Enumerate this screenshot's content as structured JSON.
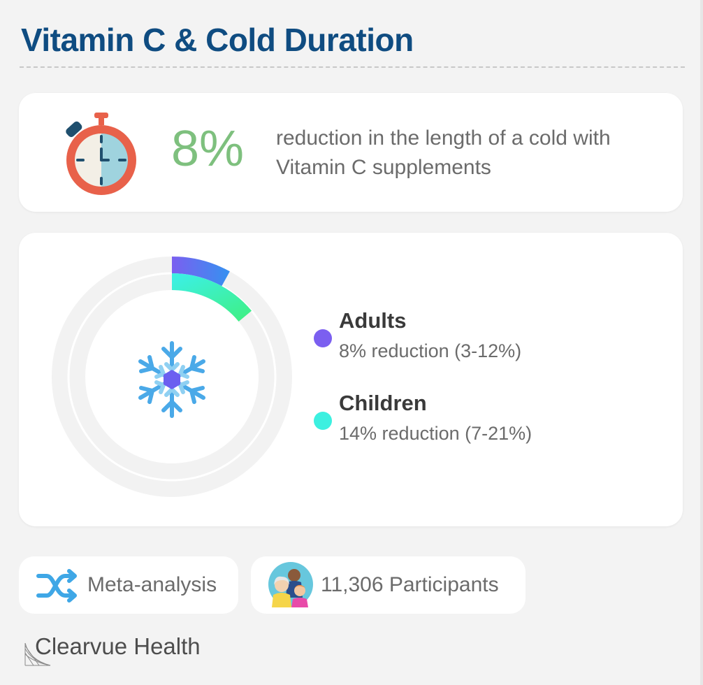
{
  "header": {
    "title": "Vitamin C & Cold Duration"
  },
  "stat": {
    "value": "8%",
    "description": "reduction in the length of a cold with Vitamin C supplements",
    "icon": "stopwatch-icon",
    "colors": {
      "value": "#7ec07e",
      "stopwatch_rim": "#e8614a",
      "stopwatch_face_left": "#f3efe6",
      "stopwatch_face_right": "#9fd3de",
      "stopwatch_marks": "#1f4f6e"
    }
  },
  "chart_data": {
    "type": "radial-bar",
    "center_icon": "snowflake-icon",
    "series": [
      {
        "name": "Adults",
        "value": 8,
        "unit": "%",
        "range": [
          3,
          12
        ],
        "label": "8% reduction (3-12%)",
        "color_start": "#7b5ff0",
        "color_end": "#3a8ef0"
      },
      {
        "name": "Children",
        "value": 14,
        "unit": "%",
        "range": [
          7,
          21
        ],
        "label": "14% reduction (7-21%)",
        "color_start": "#3cf0e0",
        "color_end": "#3ff08a"
      }
    ],
    "max": 100,
    "track_color": "#f2f2f2"
  },
  "badges": [
    {
      "icon": "shuffle-icon",
      "label": "Meta-analysis"
    },
    {
      "icon": "people-icon",
      "label": "11,306 Participants"
    }
  ],
  "brand": {
    "name": "Clearvue Health",
    "icon": "clearvue-logo-icon"
  }
}
